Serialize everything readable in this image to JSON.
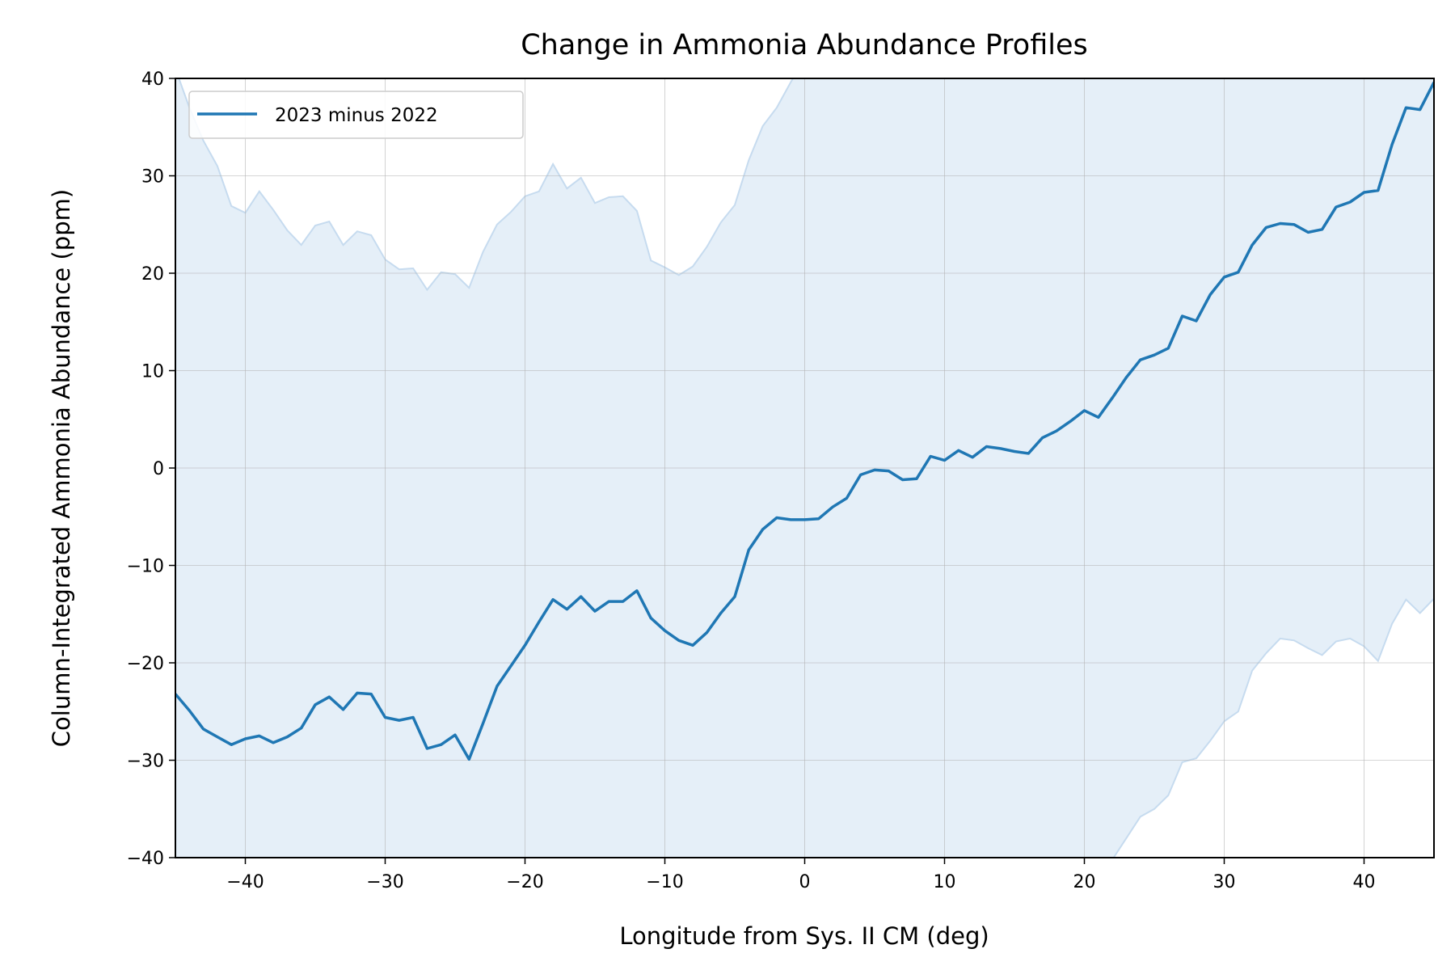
{
  "chart_data": {
    "type": "line",
    "title": "Change in Ammonia Abundance Profiles",
    "xlabel": "Longitude from Sys. II CM (deg)",
    "ylabel": "Column-Integrated Ammonia Abundance (ppm)",
    "xlim": [
      -45,
      45
    ],
    "ylim": [
      -40,
      40
    ],
    "x_ticks": [
      -40,
      -30,
      -20,
      -10,
      0,
      10,
      20,
      30,
      40
    ],
    "y_ticks": [
      -40,
      -30,
      -20,
      -10,
      0,
      10,
      20,
      30,
      40
    ],
    "x_tick_labels": [
      "−40",
      "−30",
      "−20",
      "−10",
      "0",
      "10",
      "20",
      "30",
      "40"
    ],
    "y_tick_labels": [
      "−40",
      "−30",
      "−20",
      "−10",
      "0",
      "10",
      "20",
      "30",
      "40"
    ],
    "grid": true,
    "legend_position": "top-left",
    "colors": {
      "line": "#1f77b4",
      "band": "#dce9f5",
      "band_edge": "#c6dbef",
      "grid": "#b0b0b0"
    },
    "series": [
      {
        "name": "2023 minus 2022",
        "x": [
          -45,
          -44,
          -43,
          -42,
          -41,
          -40,
          -39,
          -38,
          -37,
          -36,
          -35,
          -34,
          -33,
          -32,
          -31,
          -30,
          -29,
          -28,
          -27,
          -26,
          -25,
          -24,
          -23,
          -22,
          -21,
          -20,
          -19,
          -18,
          -17,
          -16,
          -15,
          -14,
          -13,
          -12,
          -11,
          -10,
          -9,
          -8,
          -7,
          -6,
          -5,
          -4,
          -3,
          -2,
          -1,
          0,
          1,
          2,
          3,
          4,
          5,
          6,
          7,
          8,
          9,
          10,
          11,
          12,
          13,
          14,
          15,
          16,
          17,
          18,
          19,
          20,
          21,
          22,
          23,
          24,
          25,
          26,
          27,
          28,
          29,
          30,
          31,
          32,
          33,
          34,
          35,
          36,
          37,
          38,
          39,
          40,
          41,
          42,
          43,
          44,
          45
        ],
        "y": [
          -23.2,
          -24.9,
          -26.8,
          -27.6,
          -28.4,
          -27.8,
          -27.5,
          -28.2,
          -27.6,
          -26.7,
          -24.3,
          -23.5,
          -24.8,
          -23.1,
          -23.2,
          -25.6,
          -25.9,
          -25.6,
          -28.8,
          -28.4,
          -27.4,
          -29.9,
          -26.2,
          -22.4,
          -20.3,
          -18.2,
          -15.8,
          -13.5,
          -14.5,
          -13.2,
          -14.7,
          -13.7,
          -13.7,
          -12.6,
          -15.4,
          -16.7,
          -17.7,
          -18.2,
          -16.9,
          -14.9,
          -13.2,
          -8.4,
          -6.3,
          -5.1,
          -5.3,
          -5.3,
          -5.2,
          -4.0,
          -3.1,
          -0.7,
          -0.2,
          -0.3,
          -1.2,
          -1.1,
          1.2,
          0.8,
          1.8,
          1.1,
          2.2,
          2.0,
          1.7,
          1.5,
          3.1,
          3.8,
          4.8,
          5.9,
          5.2,
          7.2,
          9.3,
          11.1,
          11.6,
          12.3,
          15.6,
          15.1,
          17.8,
          19.6,
          20.1,
          22.9,
          24.7,
          25.1,
          25.0,
          24.2,
          24.5,
          26.8,
          27.3,
          28.3,
          28.5,
          33.2,
          37.0,
          36.8,
          39.6
        ]
      }
    ],
    "uncertainty_band": {
      "upper": [
        41.0,
        37.0,
        33.6,
        31.0,
        26.9,
        26.2,
        28.4,
        26.5,
        24.4,
        22.9,
        24.9,
        25.3,
        22.9,
        24.3,
        23.9,
        21.4,
        20.4,
        20.5,
        18.3,
        20.1,
        19.9,
        18.5,
        22.2,
        25.0,
        26.3,
        27.9,
        28.4,
        31.2,
        28.7,
        29.8,
        27.2,
        27.8,
        27.9,
        26.4,
        21.3,
        20.6,
        19.8,
        20.7,
        22.7,
        25.2,
        27.0,
        31.6,
        35.1,
        37.0,
        39.6,
        42.0,
        44.0,
        45.0,
        45.0,
        45.0,
        45.0,
        45.0,
        45.0,
        45.0,
        45.0,
        45.0,
        45.0,
        45.0,
        45.0,
        45.0,
        45.0,
        45.0,
        45.0,
        45.0,
        45.0,
        45.0,
        45.0,
        45.0,
        45.0,
        45.0,
        45.0,
        45.0,
        45.0,
        45.0,
        45.0,
        45.0,
        45.0,
        45.0,
        45.0,
        45.0,
        45.0,
        45.0,
        45.0,
        45.0,
        45.0,
        45.0,
        45.0,
        45.0,
        45.0,
        45.0,
        45.0
      ],
      "lower": [
        -46.0,
        -46.0,
        -46.0,
        -46.0,
        -46.0,
        -46.0,
        -46.0,
        -46.0,
        -46.0,
        -46.0,
        -46.0,
        -46.0,
        -46.0,
        -46.0,
        -46.0,
        -46.0,
        -46.0,
        -46.0,
        -46.0,
        -46.0,
        -46.0,
        -46.0,
        -46.0,
        -46.0,
        -46.0,
        -46.0,
        -46.0,
        -46.0,
        -46.0,
        -46.0,
        -46.0,
        -46.0,
        -46.0,
        -46.0,
        -46.0,
        -46.0,
        -46.0,
        -46.0,
        -46.0,
        -46.0,
        -46.0,
        -46.0,
        -46.0,
        -46.0,
        -46.0,
        -46.0,
        -46.0,
        -46.0,
        -46.0,
        -46.0,
        -46.0,
        -46.0,
        -46.0,
        -46.0,
        -46.0,
        -46.0,
        -46.0,
        -46.0,
        -46.0,
        -46.0,
        -46.0,
        -46.0,
        -46.0,
        -46.0,
        -46.0,
        -44.0,
        -42.0,
        -40.2,
        -38.0,
        -35.8,
        -35.0,
        -33.6,
        -30.2,
        -29.8,
        -28.0,
        -26.0,
        -25.0,
        -20.8,
        -19.0,
        -17.5,
        -17.7,
        -18.5,
        -19.2,
        -17.8,
        -17.5,
        -18.3,
        -19.8,
        -16.0,
        -13.5,
        -14.9,
        -13.4
      ]
    }
  }
}
